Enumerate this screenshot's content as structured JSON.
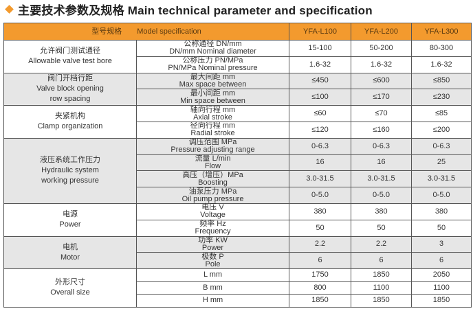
{
  "title": "主要技术参数及规格 Main technical parameter and specification",
  "accent": "#f39a2e",
  "header": {
    "model_cn": "型号规格",
    "model_en": "Model specification",
    "models": [
      "YFA-L100",
      "YFA-L200",
      "YFA-L300"
    ]
  },
  "groups": [
    {
      "cn": "允许阀门测试通径",
      "en": [
        "Allowable valve test bore"
      ],
      "rows": [
        {
          "cn": "公称通径 DN/mm",
          "en": "DN/mm Nominal diameter",
          "values": [
            "15-100",
            "50-200",
            "80-300"
          ]
        },
        {
          "cn": "公称压力 PN/MPa",
          "en": "PN/MPa Nominal pressure",
          "values": [
            "1.6-32",
            "1.6-32",
            "1.6-32"
          ]
        }
      ]
    },
    {
      "cn": "阀门开档行距",
      "en": [
        "Valve block opening",
        "row spacing"
      ],
      "rows": [
        {
          "cn": "最大间距 mm",
          "en": "Max space between",
          "values": [
            "≤450",
            "≤600",
            "≤850"
          ]
        },
        {
          "cn": "最小间距 mm",
          "en": "Min space between",
          "values": [
            "≤100",
            "≤170",
            "≤230"
          ]
        }
      ]
    },
    {
      "cn": "夹紧机构",
      "en": [
        "Clamp organization"
      ],
      "rows": [
        {
          "cn": "轴向行程 mm",
          "en": "Axial stroke",
          "values": [
            "≤60",
            "≤70",
            "≤85"
          ]
        },
        {
          "cn": "径向行程 mm",
          "en": "Radial stroke",
          "values": [
            "≤120",
            "≤160",
            "≤200"
          ]
        }
      ]
    },
    {
      "cn": "液压系统工作压力",
      "en": [
        "Hydraulic system",
        "working pressure"
      ],
      "rows": [
        {
          "cn": "调压范围 MPa",
          "en": "Pressure adjusting range",
          "values": [
            "0-6.3",
            "0-6.3",
            "0-6.3"
          ]
        },
        {
          "cn": "流量 L/min",
          "en": "Flow",
          "values": [
            "16",
            "16",
            "25"
          ]
        },
        {
          "cn": "高压（增压）MPa",
          "en": "Boosting",
          "values": [
            "3.0-31.5",
            "3.0-31.5",
            "3.0-31.5"
          ]
        },
        {
          "cn": "油泵压力 MPa",
          "en": "Oil pump pressure",
          "values": [
            "0-5.0",
            "0-5.0",
            "0-5.0"
          ]
        }
      ]
    },
    {
      "cn": "电源",
      "en": [
        "Power"
      ],
      "rows": [
        {
          "cn": "电压 V",
          "en": "Voltage",
          "values": [
            "380",
            "380",
            "380"
          ]
        },
        {
          "cn": "频率 Hz",
          "en": "Frequency",
          "values": [
            "50",
            "50",
            "50"
          ]
        }
      ]
    },
    {
      "cn": "电机",
      "en": [
        "Motor"
      ],
      "rows": [
        {
          "cn": "功率 KW",
          "en": "Power",
          "values": [
            "2.2",
            "2.2",
            "3"
          ]
        },
        {
          "cn": "极数 P",
          "en": "Pole",
          "values": [
            "6",
            "6",
            "6"
          ]
        }
      ]
    },
    {
      "cn": "外形尺寸",
      "en": [
        "Overall size"
      ],
      "small": true,
      "rows": [
        {
          "cn": "L  mm",
          "en": "",
          "values": [
            "1750",
            "1850",
            "2050"
          ]
        },
        {
          "cn": "B mm",
          "en": "",
          "values": [
            "800",
            "1100",
            "1100"
          ]
        },
        {
          "cn": "H mm",
          "en": "",
          "values": [
            "1850",
            "1850",
            "1850"
          ]
        }
      ]
    }
  ]
}
